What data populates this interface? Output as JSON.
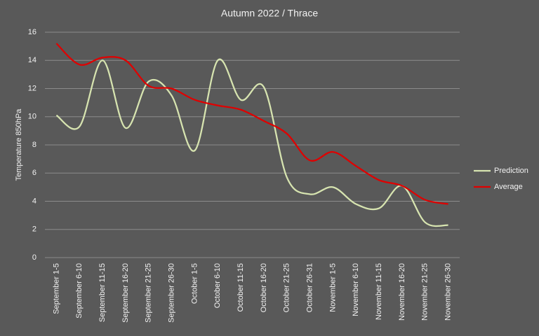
{
  "chart_data": {
    "type": "line",
    "title": "Autumn  2022 / Thrace",
    "y_label": "Temperature  850hPa",
    "categories": [
      "September 1-5",
      "September 6-10",
      "September 11-15",
      "September 16-20",
      "September 21-25",
      "September 26-30",
      "October 1-5",
      "October 6-10",
      "October 11-15",
      "October 16-20",
      "October 21-25",
      "October 26-31",
      "November 1-5",
      "November 6-10",
      "November 11-15",
      "November 16-20",
      "November 21-25",
      "November 26-30"
    ],
    "series": [
      {
        "name": "Prediction",
        "color": "#d7e4b0",
        "values": [
          10.1,
          9.3,
          14.0,
          9.2,
          12.5,
          11.5,
          7.6,
          14.0,
          11.2,
          12.1,
          5.7,
          4.5,
          5.0,
          3.8,
          3.5,
          5.1,
          2.5,
          2.3
        ]
      },
      {
        "name": "Average",
        "color": "#e00000",
        "values": [
          15.2,
          13.7,
          14.2,
          14.0,
          12.2,
          12.0,
          11.2,
          10.8,
          10.5,
          9.7,
          8.8,
          6.9,
          7.5,
          6.5,
          5.5,
          5.1,
          4.1,
          3.8
        ]
      }
    ],
    "ylim": [
      0,
      16
    ],
    "yticks": [
      0,
      2,
      4,
      6,
      8,
      10,
      12,
      14,
      16
    ],
    "grid": true,
    "smooth": true,
    "legend": "right"
  }
}
